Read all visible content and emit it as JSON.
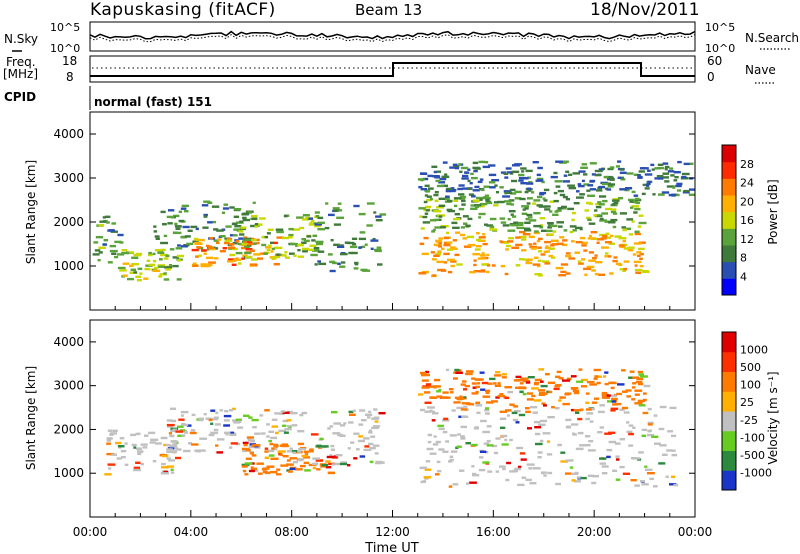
{
  "header": {
    "station": "Kapuskasing (fitACF)",
    "beam": "Beam 13",
    "date": "18/Nov/2011"
  },
  "noise_panel": {
    "left_label": "N.Sky",
    "right_label": "N.Search",
    "ticks_left": [
      "10^5",
      "10^0"
    ],
    "ticks_right": [
      "10^5",
      "10^0"
    ]
  },
  "freq_panel": {
    "left_label_1": "Freq.",
    "left_label_2": "[MHz]",
    "left_ticks": [
      "18",
      "8"
    ],
    "right_label": "Nave",
    "right_ticks": [
      "60",
      "0"
    ]
  },
  "cpid": {
    "label": "CPID",
    "value": "normal (fast) 151"
  },
  "colors": {
    "power_scale": [
      "#0000ff",
      "#2a4fb2",
      "#3f7a3a",
      "#5aa23a",
      "#c8d800",
      "#ffb000",
      "#ff7a00",
      "#ff2a00",
      "#dd0000"
    ],
    "velocity_scale": [
      "#1a36c8",
      "#2b8a3e",
      "#66cc22",
      "#c0c0c0",
      "#ffb000",
      "#ff7a00",
      "#ff3000",
      "#e00000"
    ]
  },
  "chart_data": [
    {
      "type": "heatmap",
      "name": "power",
      "ylabel": "Slant Range [km]",
      "ylim": [
        0,
        4500
      ],
      "yticks": [
        "1000",
        "2000",
        "3000",
        "4000"
      ],
      "xlim": [
        0,
        24
      ],
      "colorbar_label": "Power [dB]",
      "colorbar_ticks": [
        "28",
        "24",
        "20",
        "16",
        "12",
        "8",
        "4"
      ],
      "colorbar_range": [
        0,
        32
      ],
      "regions": [
        {
          "t": [
            0.0,
            1.2
          ],
          "r": [
            1000,
            2200
          ],
          "level": 10
        },
        {
          "t": [
            1.0,
            3.5
          ],
          "r": [
            700,
            1400
          ],
          "level": 14
        },
        {
          "t": [
            2.5,
            6.5
          ],
          "r": [
            1400,
            2500
          ],
          "level": 9
        },
        {
          "t": [
            4.0,
            7.5
          ],
          "r": [
            1000,
            1700
          ],
          "level": 22
        },
        {
          "t": [
            5.5,
            9.0
          ],
          "r": [
            1200,
            2200
          ],
          "level": 13
        },
        {
          "t": [
            8.5,
            11.5
          ],
          "r": [
            900,
            2500
          ],
          "level": 9
        },
        {
          "t": [
            13.0,
            22.0
          ],
          "r": [
            800,
            1800
          ],
          "level": 21
        },
        {
          "t": [
            13.0,
            22.0
          ],
          "r": [
            1800,
            2600
          ],
          "level": 11
        },
        {
          "t": [
            13.0,
            23.8
          ],
          "r": [
            2600,
            3400
          ],
          "level": 7
        }
      ]
    },
    {
      "type": "heatmap",
      "name": "velocity",
      "ylabel": "Slant Range [km]",
      "ylim": [
        0,
        4500
      ],
      "yticks": [
        "1000",
        "2000",
        "3000",
        "4000"
      ],
      "xlim": [
        0,
        24
      ],
      "xlabel": "Time UT",
      "xticks": [
        "00:00",
        "04:00",
        "08:00",
        "12:00",
        "16:00",
        "20:00",
        "00:00"
      ],
      "colorbar_label": "Velocity [m s⁻¹]",
      "colorbar_ticks": [
        "1000",
        "500",
        "100",
        "25",
        "-25",
        "-100",
        "-500",
        "-1000"
      ],
      "regions": [
        {
          "t": [
            0.5,
            3.5
          ],
          "r": [
            1000,
            2000
          ],
          "level": 3
        },
        {
          "t": [
            3.0,
            8.0
          ],
          "r": [
            1500,
            2500
          ],
          "level": 3
        },
        {
          "t": [
            6.0,
            9.5
          ],
          "r": [
            1000,
            1700
          ],
          "level": 5
        },
        {
          "t": [
            8.0,
            11.5
          ],
          "r": [
            1200,
            2500
          ],
          "level": 3
        },
        {
          "t": [
            13.0,
            23.5
          ],
          "r": [
            700,
            2600
          ],
          "level": 3
        },
        {
          "t": [
            16.0,
            22.0
          ],
          "r": [
            2400,
            3400
          ],
          "level": 5
        },
        {
          "t": [
            13.0,
            16.0
          ],
          "r": [
            2600,
            3400
          ],
          "level": 5
        }
      ]
    }
  ]
}
